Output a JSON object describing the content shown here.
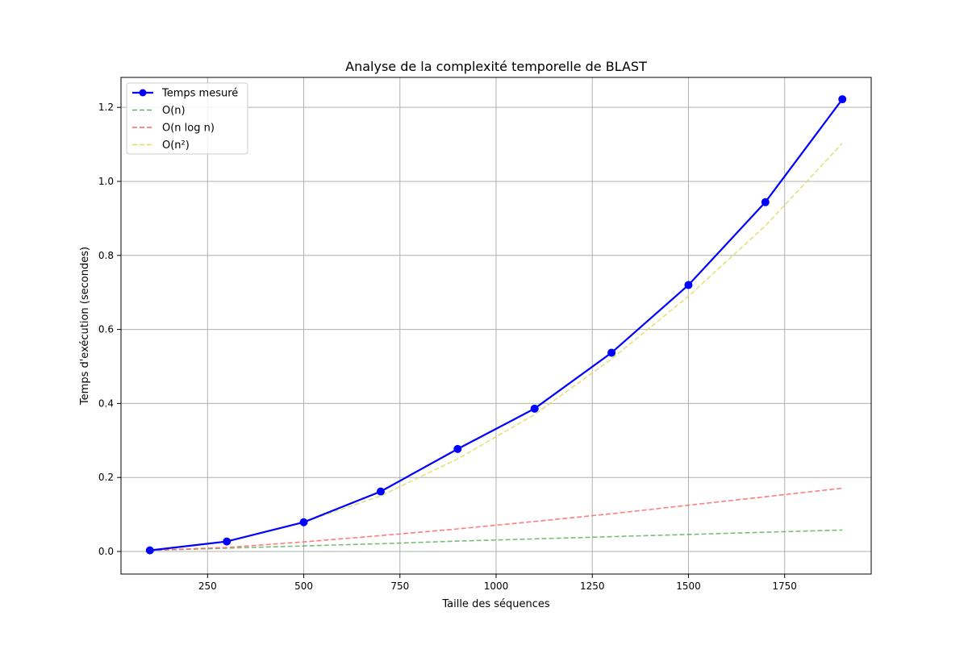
{
  "chart_data": {
    "type": "line",
    "title": "Analyse de la complexité temporelle de BLAST",
    "xlabel": "Taille des séquences",
    "ylabel": "Temps d'exécution (secondes)",
    "xlim": [
      25,
      1975
    ],
    "ylim": [
      -0.061,
      1.281
    ],
    "x_ticks": [
      250,
      500,
      750,
      1000,
      1250,
      1500,
      1750
    ],
    "y_ticks": [
      0.0,
      0.2,
      0.4,
      0.6,
      0.8,
      1.0,
      1.2
    ],
    "y_tick_labels": [
      "0.0",
      "0.2",
      "0.4",
      "0.6",
      "0.8",
      "1.0",
      "1.2"
    ],
    "grid": true,
    "legend_position": "top-left",
    "x": [
      100,
      300,
      500,
      700,
      900,
      1100,
      1300,
      1500,
      1700,
      1900
    ],
    "series": [
      {
        "name": "Temps mesuré",
        "style": "solid-markers",
        "color": "#0000ff",
        "values": [
          0.003,
          0.027,
          0.079,
          0.162,
          0.277,
          0.386,
          0.537,
          0.72,
          0.944,
          1.222
        ]
      },
      {
        "name": "O(n)",
        "style": "dashed",
        "color": "#5fb35f",
        "values": [
          0.003,
          0.009,
          0.015,
          0.021,
          0.028,
          0.034,
          0.04,
          0.046,
          0.052,
          0.058
        ]
      },
      {
        "name": "O(n log n)",
        "style": "dashed",
        "color": "#ff6666",
        "values": [
          0.003,
          0.011,
          0.026,
          0.043,
          0.061,
          0.081,
          0.102,
          0.125,
          0.148,
          0.171
        ]
      },
      {
        "name": "O(n²)",
        "style": "dashed",
        "color": "#dddd66",
        "values": [
          0.003,
          0.027,
          0.079,
          0.15,
          0.25,
          0.37,
          0.52,
          0.69,
          0.88,
          1.103
        ]
      }
    ]
  }
}
